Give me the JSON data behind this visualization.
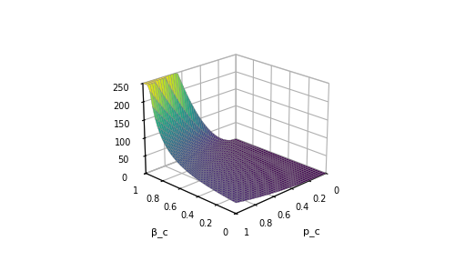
{
  "xlabel": "β_c",
  "ylabel": "p_c",
  "beta_min": 0.0,
  "beta_max": 1.0,
  "pc_min": 0.0,
  "pc_max": 1.0,
  "n_points": 40,
  "zlim": [
    0,
    250
  ],
  "zticks": [
    0,
    50,
    100,
    150,
    200,
    250
  ],
  "colormap": "viridis",
  "view_elev": 22,
  "view_azim": 225,
  "figsize": [
    5.0,
    2.87
  ],
  "dpi": 100,
  "scale_factor": 30.0,
  "clip_value": 250.0,
  "epsilon": 0.05
}
